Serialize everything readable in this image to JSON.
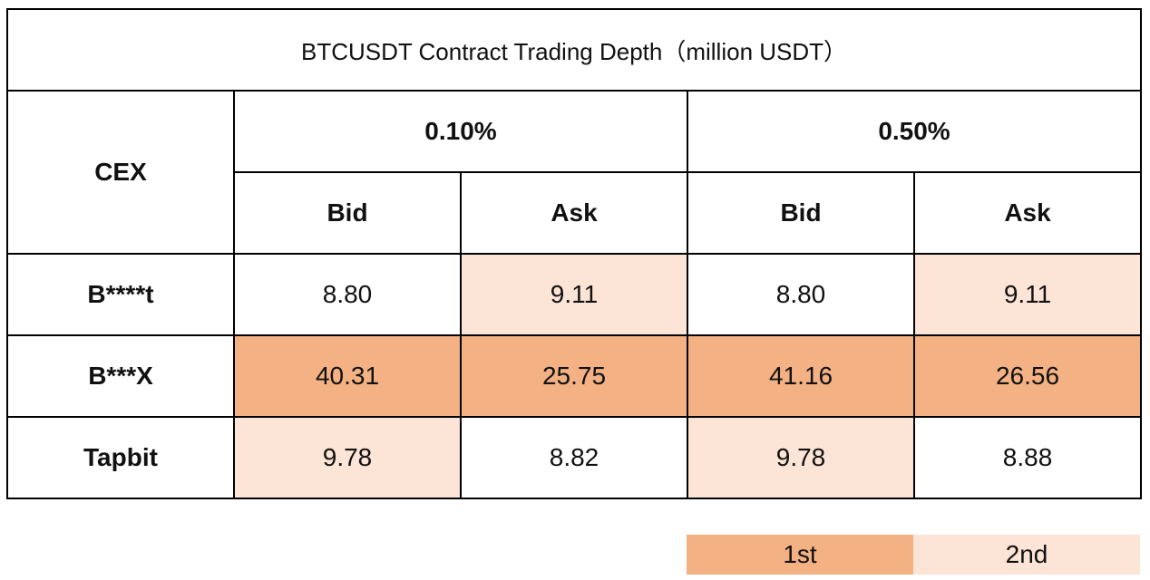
{
  "table": {
    "title": "BTCUSDT Contract Trading Depth（million USDT）",
    "corner_header": "CEX",
    "depth_levels": [
      "0.10%",
      "0.50%"
    ],
    "side_headers": [
      "Bid",
      "Ask",
      "Bid",
      "Ask"
    ],
    "rows": [
      {
        "exchange": "B****t",
        "values": [
          "8.80",
          "9.11",
          "8.80",
          "9.11"
        ],
        "ranks": [
          0,
          2,
          0,
          2
        ]
      },
      {
        "exchange": "B***X",
        "values": [
          "40.31",
          "25.75",
          "41.16",
          "26.56"
        ],
        "ranks": [
          1,
          1,
          1,
          1
        ]
      },
      {
        "exchange": "Tapbit",
        "values": [
          "9.78",
          "8.82",
          "9.78",
          "8.88"
        ],
        "ranks": [
          2,
          0,
          2,
          0
        ]
      }
    ]
  },
  "legend": {
    "first_label": "1st",
    "second_label": "2nd",
    "first_color": "#f4b183",
    "second_color": "#fce4d6"
  }
}
